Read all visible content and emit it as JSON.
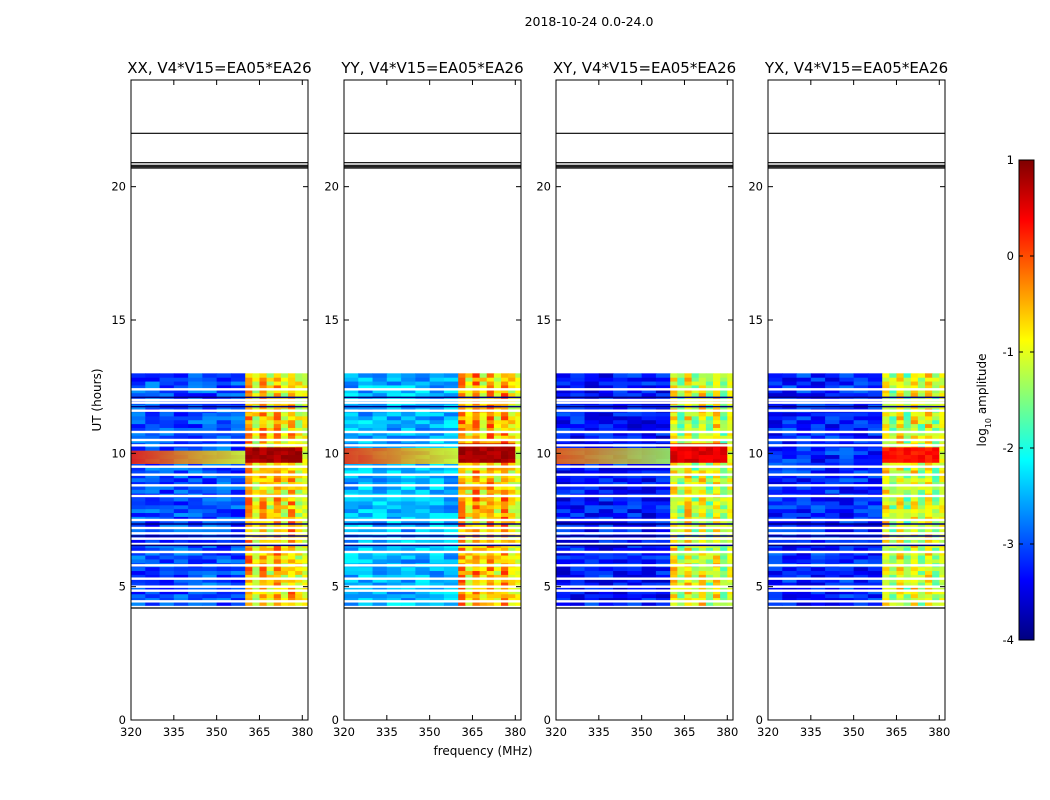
{
  "chart_data": {
    "type": "heatmap",
    "suptitle": "2018-10-24 0.0-24.0",
    "xlabel": "frequency (MHz)",
    "ylabel": "UT (hours)",
    "xlim": [
      320,
      382
    ],
    "ylim": [
      0,
      24
    ],
    "xticks": [
      320,
      335,
      350,
      365,
      380
    ],
    "yticks": [
      0,
      5,
      10,
      15,
      20
    ],
    "colorbar": {
      "label": "log10 amplitude",
      "range": [
        -4,
        1
      ],
      "ticks": [
        1,
        0,
        -1,
        -2,
        -3,
        -4
      ],
      "colormap": "jet",
      "colors": [
        "#00007f",
        "#0000ff",
        "#007fff",
        "#00ffff",
        "#7fff7f",
        "#ffff00",
        "#ff7f00",
        "#ff0000",
        "#7f0000"
      ]
    },
    "data_time_range": [
      4.3,
      13.0
    ],
    "flagged_lines_hours": [
      4.2,
      20.7,
      20.75,
      20.8,
      20.9,
      22.0
    ],
    "data_gaps_hours": [
      4.45,
      4.85,
      5.0,
      5.3,
      5.8,
      6.3,
      6.6,
      6.8,
      7.0,
      7.2,
      7.5,
      8.4,
      8.8,
      9.2,
      9.5,
      10.3,
      10.5,
      10.8,
      11.6,
      11.9,
      12.0,
      12.4
    ],
    "rfi_channel_range_mhz": [
      360,
      380
    ],
    "panels": [
      {
        "title": "XX, V4*V15=EA05*EA26",
        "baseline_level": -3.0,
        "band_level": -0.4,
        "strong_band_hours": [
          9.6,
          10.1
        ],
        "strong_band_level": 0.8
      },
      {
        "title": "YY, V4*V15=EA05*EA26",
        "baseline_level": -2.5,
        "band_level": -0.3,
        "strong_band_hours": [
          9.6,
          10.2
        ],
        "strong_band_level": 0.8
      },
      {
        "title": "XY, V4*V15=EA05*EA26",
        "baseline_level": -3.3,
        "band_level": -0.8,
        "strong_band_hours": [
          9.6,
          10.2
        ],
        "strong_band_level": 0.5
      },
      {
        "title": "YX, V4*V15=EA05*EA26",
        "baseline_level": -3.2,
        "band_level": -0.8,
        "strong_band_hours": [
          9.6,
          10.1
        ],
        "strong_band_level": 0.3
      }
    ]
  }
}
